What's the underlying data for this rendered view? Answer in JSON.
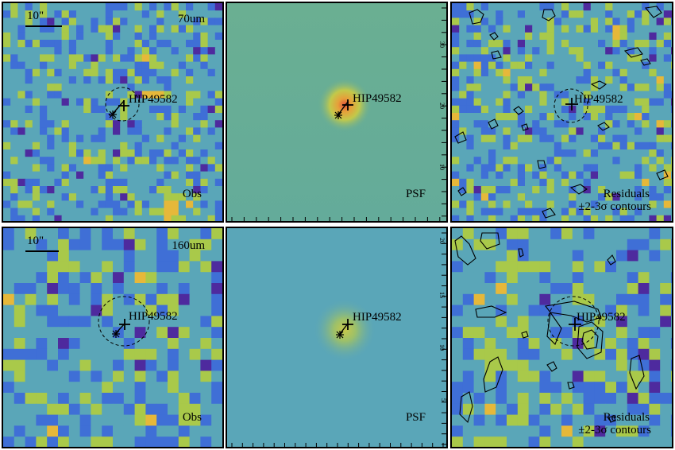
{
  "target_name": "HIP49582",
  "scale_bar_label": "10\"",
  "psf_label": "PSF",
  "obs_label": "Obs",
  "residuals_label": "Residuals",
  "contours_label": "±2-3σ contours",
  "bands": [
    {
      "band_label": "70um",
      "axis_ticks": [
        "30",
        "20",
        "10"
      ]
    },
    {
      "band_label": "160um",
      "axis_ticks": [
        "20",
        "15",
        "10",
        "5"
      ]
    }
  ],
  "colors": {
    "map_low": "#4e2a9e",
    "map_mid_low": "#3f6fd6",
    "map_mid": "#5aa6b8",
    "map_mid_high": "#a9c94a",
    "map_high": "#e6b83a",
    "map_peak": "#e0413a",
    "psf_bg_top": "#6aaf92",
    "psf_bg_bottom": "#5aa6b8"
  }
}
